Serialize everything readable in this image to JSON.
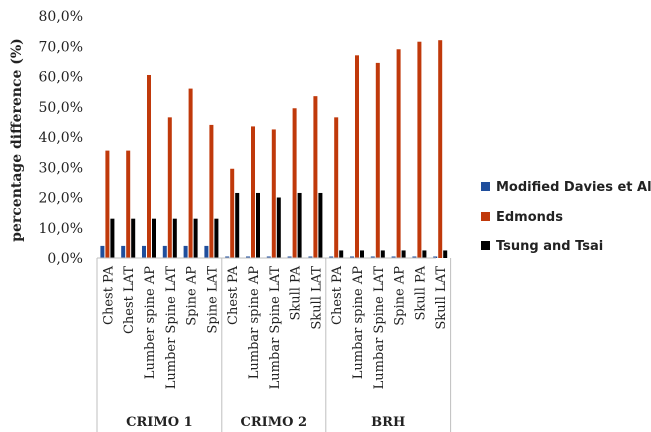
{
  "chart_data": {
    "type": "bar",
    "title": "",
    "ylabel": "percentage difference (%)",
    "xlabel": "",
    "ylim": [
      0,
      80
    ],
    "ytick_labels": [
      "0,0%",
      "10,0%",
      "20,0%",
      "30,0%",
      "40,0%",
      "50,0%",
      "60,0%",
      "70,0%",
      "80,0%"
    ],
    "groups": [
      {
        "name": "CRIMO 1",
        "categories": [
          "Chest PA",
          "Chest LAT",
          "Lumber spine AP",
          "Lumber Spine LAT",
          "Spine AP",
          "Spine LAT"
        ]
      },
      {
        "name": "CRIMO 2",
        "categories": [
          "Chest PA",
          "Lumbar spine AP",
          "Lumbar Spine LAT",
          "Skull PA",
          "Skull LAT"
        ]
      },
      {
        "name": "BRH",
        "categories": [
          "Chest PA",
          "Lumbar spine AP",
          "Lumbar Spine LAT",
          "Spine AP",
          "Skull PA",
          "Skull LAT"
        ]
      }
    ],
    "series": [
      {
        "name": "Modified Davies et Al",
        "color": "#1f4e9c",
        "values": [
          4,
          4,
          4,
          4,
          4,
          4,
          0.5,
          0.5,
          0.5,
          0.5,
          0.5,
          0.5,
          0.5,
          0.5,
          0.5,
          0.5,
          0.5
        ]
      },
      {
        "name": "Edmonds",
        "color": "#c0390b",
        "values": [
          35.5,
          35.5,
          60.5,
          46.5,
          56,
          44,
          29.5,
          43.5,
          42.5,
          49.5,
          53.5,
          46.5,
          67,
          64.5,
          69,
          71.5,
          72
        ]
      },
      {
        "name": "Tsung and Tsai",
        "color": "#000000",
        "values": [
          13,
          13,
          13,
          13,
          13,
          13,
          21.5,
          21.5,
          20,
          21.5,
          21.5,
          2.5,
          2.5,
          2.5,
          2.5,
          2.5,
          2.5
        ]
      }
    ],
    "grid": false,
    "legend_position": "right"
  }
}
